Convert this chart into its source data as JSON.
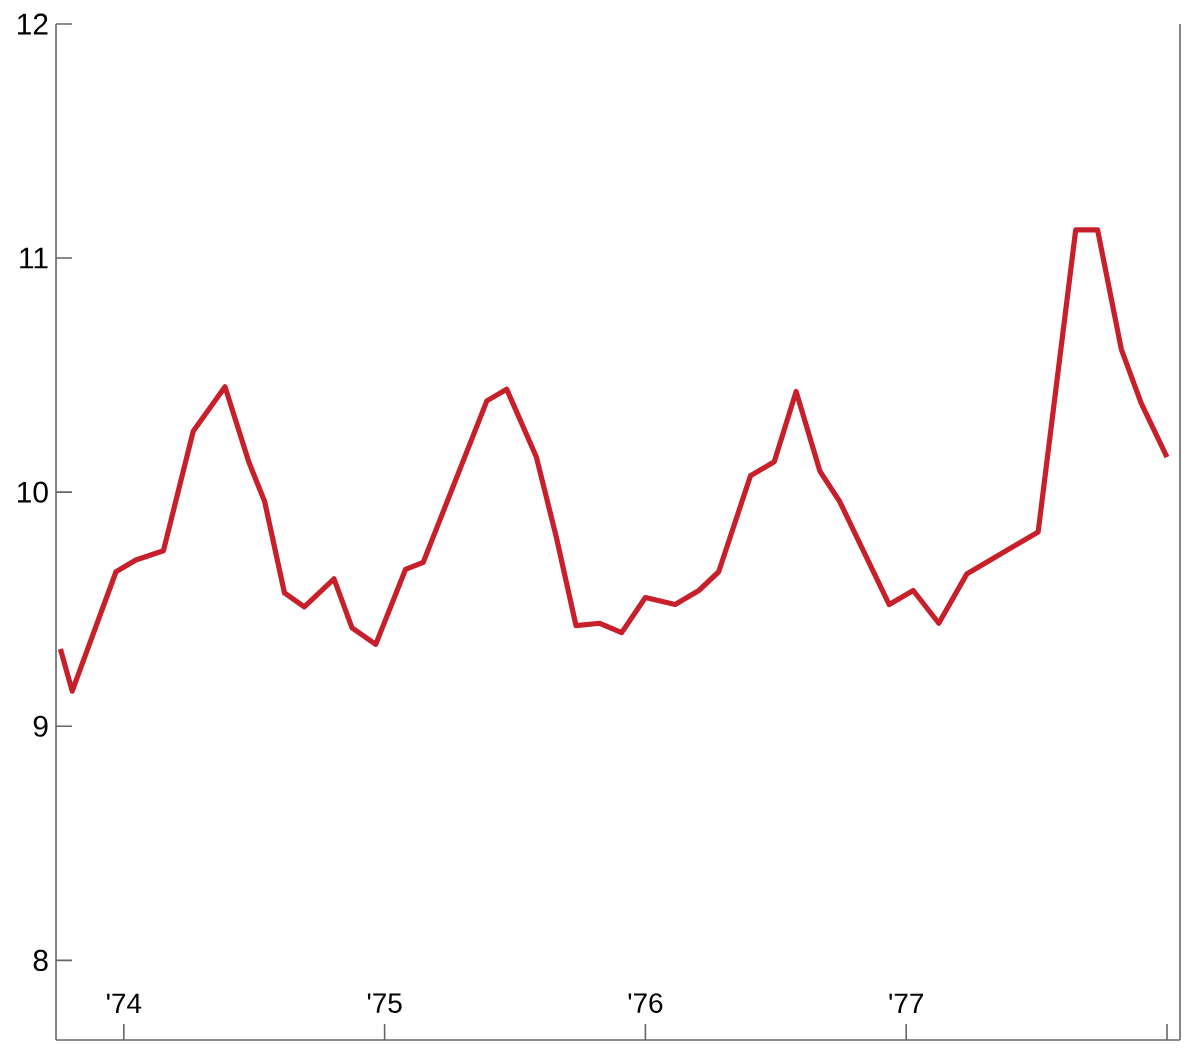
{
  "chart_data": {
    "type": "line",
    "color": "#c8202a",
    "marker": "none",
    "line_style": "solid",
    "grid": false,
    "x": [
      1973.757,
      1973.802,
      1973.97,
      1974.046,
      1974.152,
      1974.266,
      1974.388,
      1974.479,
      1974.54,
      1974.616,
      1974.692,
      1974.806,
      1974.875,
      1974.966,
      1975.08,
      1975.148,
      1975.392,
      1975.468,
      1975.582,
      1975.658,
      1975.734,
      1975.825,
      1975.909,
      1976.0,
      1976.114,
      1976.205,
      1976.281,
      1976.403,
      1976.494,
      1976.578,
      1976.669,
      1976.745,
      1976.935,
      1977.027,
      1977.125,
      1977.232,
      1977.506,
      1977.65,
      1977.734,
      1977.825,
      1977.901,
      1978.0
    ],
    "values": [
      9.33,
      9.15,
      9.66,
      9.71,
      9.75,
      10.26,
      10.45,
      10.13,
      9.96,
      9.57,
      9.51,
      9.63,
      9.42,
      9.35,
      9.67,
      9.7,
      10.39,
      10.44,
      10.15,
      9.81,
      9.43,
      9.44,
      9.4,
      9.55,
      9.52,
      9.58,
      9.66,
      10.07,
      10.13,
      10.43,
      10.09,
      9.96,
      9.52,
      9.58,
      9.44,
      9.65,
      9.83,
      11.12,
      11.12,
      10.61,
      10.38,
      10.15
    ],
    "xlim": [
      1973.74,
      1978.05
    ],
    "ylim": [
      7.66,
      12
    ],
    "xticks": [
      {
        "value": 1974,
        "label": "'74"
      },
      {
        "value": 1975,
        "label": "'75"
      },
      {
        "value": 1976,
        "label": "'76"
      },
      {
        "value": 1977,
        "label": "'77"
      },
      {
        "value": 1978,
        "label": null
      }
    ],
    "yticks": [
      8,
      9,
      10,
      11,
      12
    ]
  }
}
